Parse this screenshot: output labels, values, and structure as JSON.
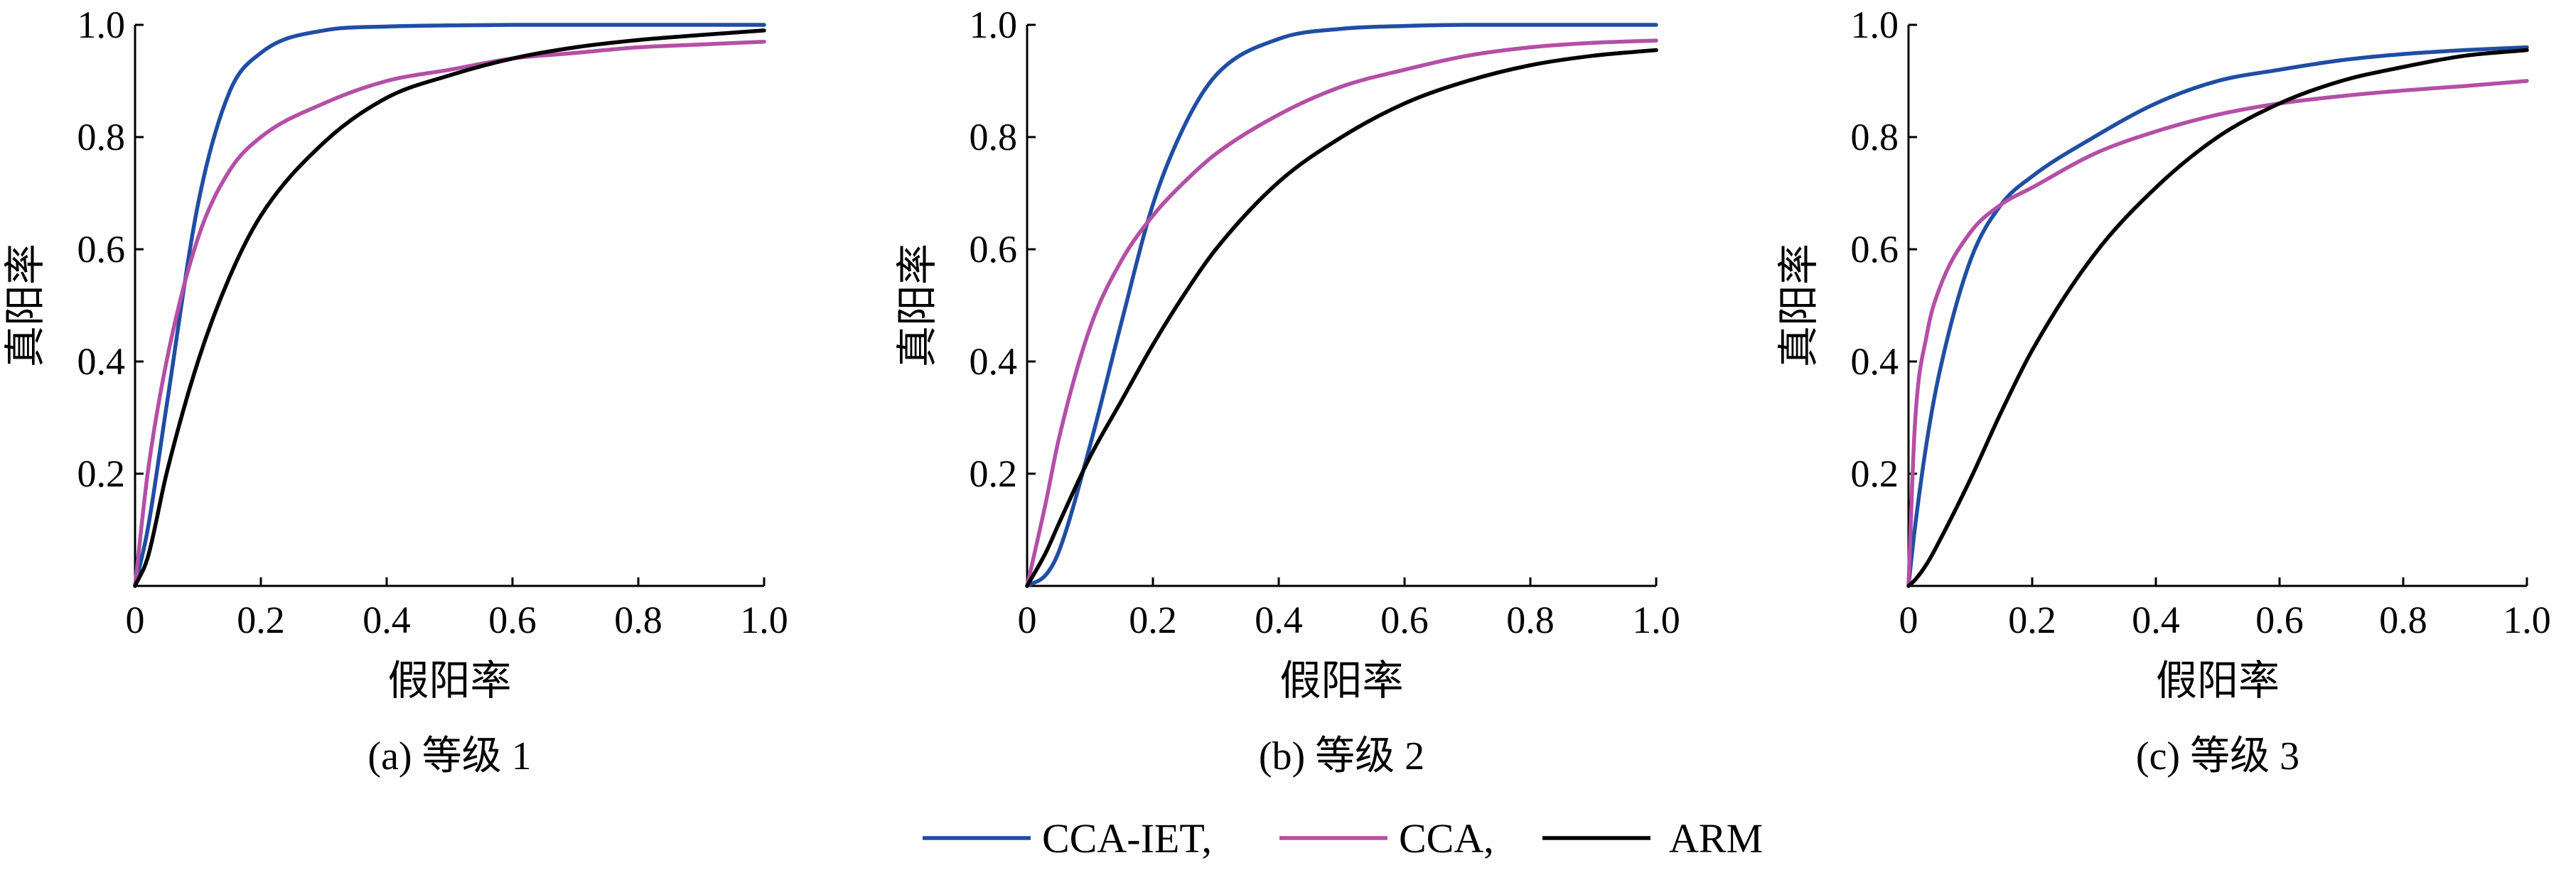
{
  "series_styles": [
    {
      "key": "cca_iet",
      "label": "CCA-IET,",
      "color": "#1f4ea3"
    },
    {
      "key": "cca",
      "label": "CCA,",
      "color": "#b44fa6"
    },
    {
      "key": "arm",
      "label": "ARM",
      "color": "#000000"
    }
  ],
  "chart_data": [
    {
      "type": "line",
      "caption": "(a)  等级 1",
      "xlabel": "假阳率",
      "ylabel": "真阳率",
      "xlim": [
        0,
        1.0
      ],
      "ylim": [
        0,
        1.0
      ],
      "xticks": [
        0,
        0.2,
        0.4,
        0.6,
        0.8,
        1.0
      ],
      "xtick_labels": [
        "0",
        "0.2",
        "0.4",
        "0.6",
        "0.8",
        "1.0"
      ],
      "yticks": [
        0.2,
        0.4,
        0.6,
        0.8,
        1.0
      ],
      "ytick_labels": [
        "0.2",
        "0.4",
        "0.6",
        "0.8",
        "1.0"
      ],
      "x": [
        0,
        0.02,
        0.05,
        0.1,
        0.15,
        0.2,
        0.3,
        0.4,
        0.5,
        0.6,
        0.7,
        0.8,
        0.9,
        1.0
      ],
      "series": [
        {
          "name": "CCA-IET,",
          "values": [
            0,
            0.1,
            0.32,
            0.68,
            0.88,
            0.95,
            0.99,
            0.997,
            0.999,
            1.0,
            1.0,
            1.0,
            1.0,
            1.0
          ]
        },
        {
          "name": "CCA,",
          "values": [
            0,
            0.2,
            0.4,
            0.62,
            0.74,
            0.8,
            0.86,
            0.9,
            0.92,
            0.94,
            0.95,
            0.96,
            0.965,
            0.97
          ]
        },
        {
          "name": "ARM",
          "values": [
            0,
            0.05,
            0.2,
            0.4,
            0.55,
            0.66,
            0.79,
            0.87,
            0.91,
            0.94,
            0.96,
            0.973,
            0.982,
            0.99
          ]
        }
      ]
    },
    {
      "type": "line",
      "caption": "(b)  等级 2",
      "xlabel": "假阳率",
      "ylabel": "真阳率",
      "xlim": [
        0,
        1.0
      ],
      "ylim": [
        0,
        1.0
      ],
      "xticks": [
        0,
        0.2,
        0.4,
        0.6,
        0.8,
        1.0
      ],
      "xtick_labels": [
        "0",
        "0.2",
        "0.4",
        "0.6",
        "0.8",
        "1.0"
      ],
      "yticks": [
        0.2,
        0.4,
        0.6,
        0.8,
        1.0
      ],
      "ytick_labels": [
        "0.2",
        "0.4",
        "0.6",
        "0.8",
        "1.0"
      ],
      "x": [
        0,
        0.03,
        0.05,
        0.1,
        0.15,
        0.2,
        0.25,
        0.3,
        0.4,
        0.5,
        0.6,
        0.7,
        0.8,
        0.9,
        1.0
      ],
      "series": [
        {
          "name": "CCA-IET,",
          "values": [
            0,
            0.02,
            0.06,
            0.25,
            0.47,
            0.68,
            0.82,
            0.91,
            0.975,
            0.993,
            0.998,
            1.0,
            1.0,
            1.0,
            1.0
          ]
        },
        {
          "name": "CCA,",
          "values": [
            0,
            0.15,
            0.26,
            0.46,
            0.58,
            0.66,
            0.72,
            0.77,
            0.84,
            0.89,
            0.92,
            0.945,
            0.96,
            0.968,
            0.972
          ]
        },
        {
          "name": "ARM",
          "values": [
            0,
            0.06,
            0.11,
            0.23,
            0.33,
            0.43,
            0.52,
            0.6,
            0.72,
            0.8,
            0.86,
            0.9,
            0.928,
            0.945,
            0.955
          ]
        }
      ]
    },
    {
      "type": "line",
      "caption": "(c)  等级 3",
      "xlabel": "假阳率",
      "ylabel": "真阳率",
      "xlim": [
        0,
        1.0
      ],
      "ylim": [
        0,
        1.0
      ],
      "xticks": [
        0,
        0.2,
        0.4,
        0.6,
        0.8,
        1.0
      ],
      "xtick_labels": [
        "0",
        "0.2",
        "0.4",
        "0.6",
        "0.8",
        "1.0"
      ],
      "yticks": [
        0.2,
        0.4,
        0.6,
        0.8,
        1.0
      ],
      "ytick_labels": [
        "0.2",
        "0.4",
        "0.6",
        "0.8",
        "1.0"
      ],
      "x": [
        0,
        0.01,
        0.03,
        0.05,
        0.1,
        0.15,
        0.2,
        0.3,
        0.4,
        0.5,
        0.6,
        0.7,
        0.8,
        0.9,
        1.0
      ],
      "series": [
        {
          "name": "CCA-IET,",
          "values": [
            0,
            0.1,
            0.26,
            0.38,
            0.58,
            0.68,
            0.73,
            0.8,
            0.86,
            0.9,
            0.92,
            0.937,
            0.948,
            0.955,
            0.96
          ]
        },
        {
          "name": "CCA,",
          "values": [
            0,
            0.28,
            0.45,
            0.53,
            0.63,
            0.68,
            0.71,
            0.77,
            0.81,
            0.84,
            0.86,
            0.873,
            0.883,
            0.891,
            0.9
          ]
        },
        {
          "name": "ARM",
          "values": [
            0,
            0.01,
            0.04,
            0.08,
            0.19,
            0.31,
            0.42,
            0.59,
            0.71,
            0.8,
            0.86,
            0.9,
            0.925,
            0.945,
            0.955
          ]
        }
      ]
    }
  ]
}
